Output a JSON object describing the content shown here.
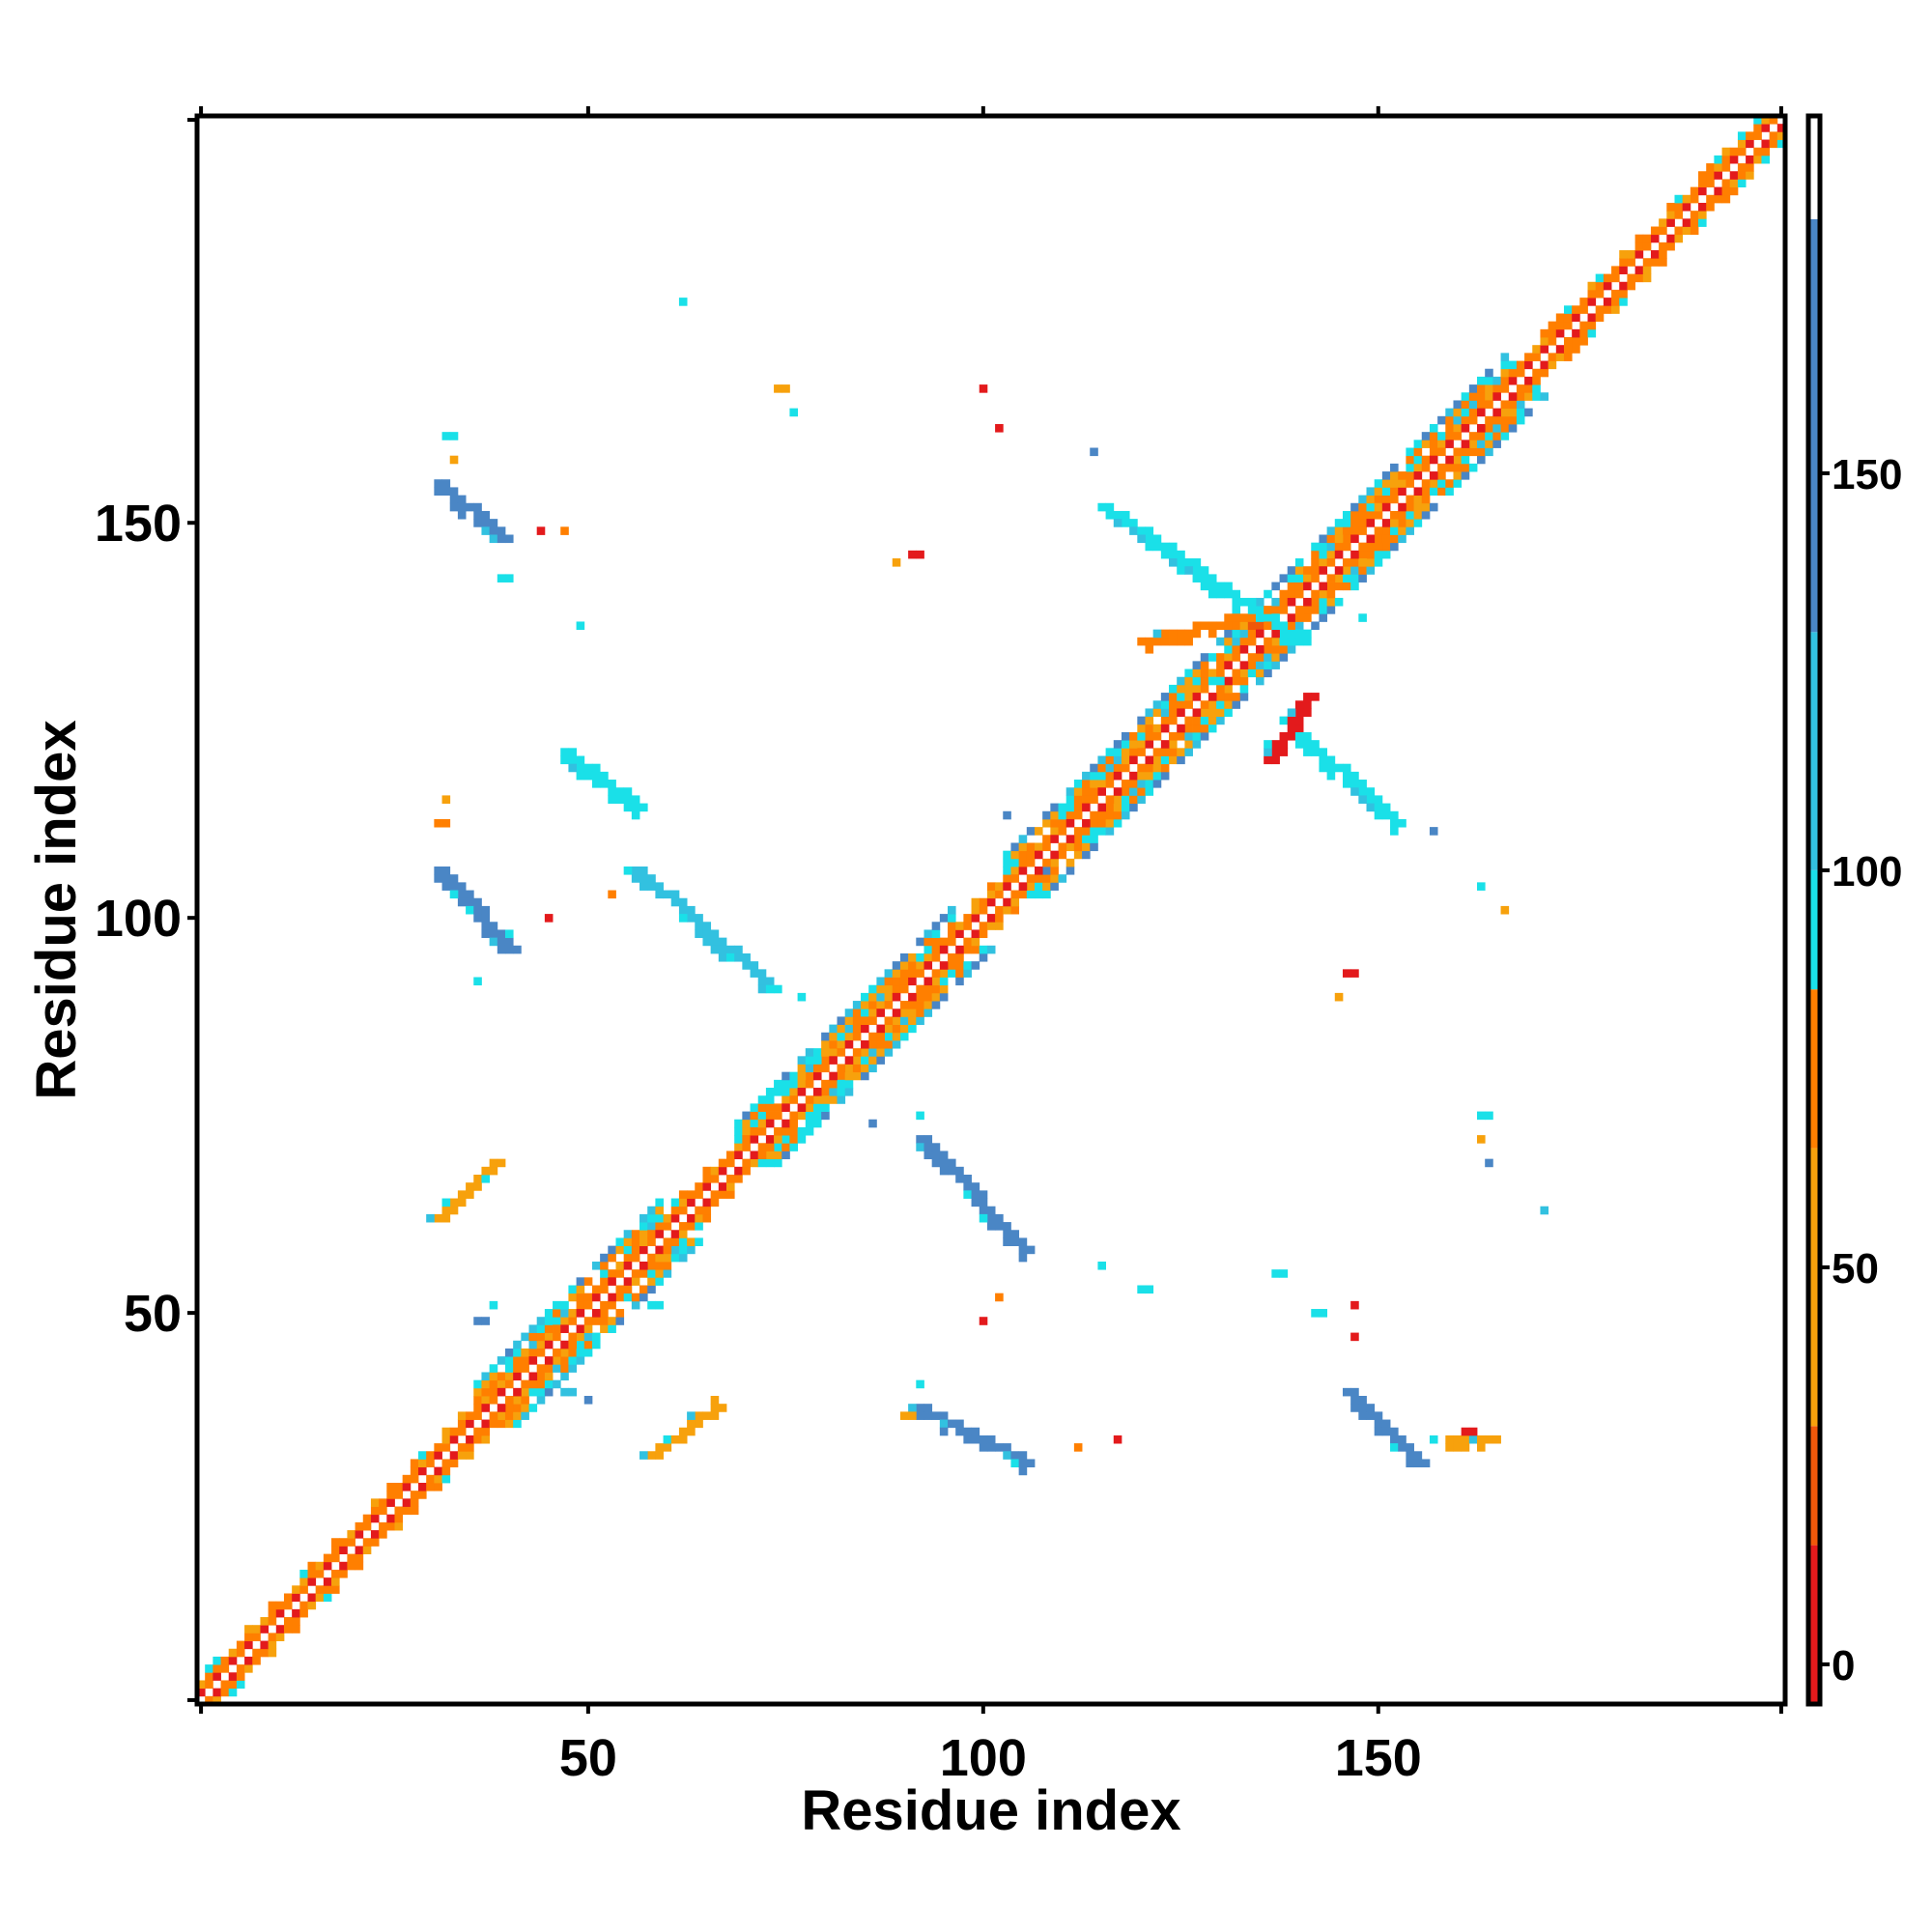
{
  "chart_data": {
    "type": "heatmap",
    "xlabel": "Residue index",
    "ylabel": "Residue index",
    "x_range": [
      1,
      201
    ],
    "y_range": [
      1,
      201
    ],
    "x_ticks": [
      50,
      100,
      150
    ],
    "y_ticks": [
      50,
      100,
      150
    ],
    "colorbar": {
      "range": [
        -5,
        195
      ],
      "ticks": [
        0,
        50,
        100,
        150
      ],
      "segments": [
        {
          "from": -5,
          "to": 15,
          "color": "#e31a1c"
        },
        {
          "from": 15,
          "to": 30,
          "color": "#f0580a"
        },
        {
          "from": 30,
          "to": 65,
          "color": "#f7a10c"
        },
        {
          "from": 65,
          "to": 85,
          "color": "#ff7f00"
        },
        {
          "from": 85,
          "to": 100,
          "color": "#1ae0e8"
        },
        {
          "from": 100,
          "to": 130,
          "color": "#32c1e0"
        },
        {
          "from": 130,
          "to": 182,
          "color": "#4a86c5"
        },
        {
          "from": 182,
          "to": 195,
          "color": "#ffffff"
        }
      ]
    },
    "colors": {
      "red": "#e31a1c",
      "orange": "#ff7f00",
      "light_orange": "#f7a10c",
      "cyan": "#1ae0e8",
      "sky": "#32c1e0",
      "steel_blue": "#4a86c5"
    },
    "features": [
      {
        "kind": "diagonal",
        "start": 1,
        "end": 201
      },
      {
        "kind": "helix_block",
        "start": 36,
        "end": 59
      },
      {
        "kind": "helix_block",
        "start": 69,
        "end": 96
      },
      {
        "kind": "helix_block",
        "start": 103,
        "end": 126
      },
      {
        "kind": "helix_block",
        "start": 123,
        "end": 152
      },
      {
        "kind": "helix_block",
        "start": 154,
        "end": 166
      },
      {
        "kind": "band",
        "x1": 31,
        "y1": 106,
        "x2": 40,
        "y2": 96,
        "color": "#4a86c5"
      },
      {
        "kind": "band",
        "x1": 56,
        "y1": 106,
        "x2": 72,
        "y2": 92,
        "color": "#32c1e0"
      },
      {
        "kind": "band",
        "x1": 31,
        "y1": 155,
        "x2": 39,
        "y2": 148,
        "color": "#4a86c5"
      },
      {
        "kind": "band",
        "x1": 92,
        "y1": 38,
        "x2": 105,
        "y2": 31,
        "color": "#4a86c5"
      },
      {
        "kind": "band",
        "x1": 92,
        "y1": 72,
        "x2": 105,
        "y2": 58,
        "color": "#4a86c5"
      },
      {
        "kind": "band",
        "x1": 146,
        "y1": 40,
        "x2": 155,
        "y2": 31,
        "color": "#4a86c5"
      },
      {
        "kind": "band",
        "x1": 115,
        "y1": 152,
        "x2": 140,
        "y2": 135,
        "color": "#1ae0e8"
      },
      {
        "kind": "band",
        "x1": 138,
        "y1": 125,
        "x2": 152,
        "y2": 112,
        "color": "#1ae0e8"
      },
      {
        "kind": "band",
        "x1": 120,
        "y1": 135,
        "x2": 133,
        "y2": 138,
        "color": "#ff7f00"
      },
      {
        "kind": "band",
        "x1": 136,
        "y1": 120,
        "x2": 141,
        "y2": 128,
        "color": "#e31a1c"
      },
      {
        "kind": "band",
        "x1": 31,
        "y1": 62,
        "x2": 38,
        "y2": 69,
        "color": "#f7a10c"
      },
      {
        "kind": "band",
        "x1": 58,
        "y1": 32,
        "x2": 66,
        "y2": 38,
        "color": "#f7a10c"
      },
      {
        "kind": "band",
        "x1": 47,
        "y1": 121,
        "x2": 56,
        "y2": 114,
        "color": "#1ae0e8"
      },
      {
        "kind": "band",
        "x1": 159,
        "y1": 34,
        "x2": 164,
        "y2": 34,
        "color": "#f7a10c"
      },
      {
        "kind": "spot",
        "x": 31,
        "y": 112,
        "color": "#ff7f00"
      },
      {
        "kind": "spot",
        "x": 32,
        "y": 115,
        "color": "#f7a10c"
      },
      {
        "kind": "spot",
        "x": 32,
        "y": 161,
        "color": "#1ae0e8"
      },
      {
        "kind": "spot",
        "x": 33,
        "y": 158,
        "color": "#f7a10c"
      },
      {
        "kind": "spot",
        "x": 44,
        "y": 149,
        "color": "#e31a1c"
      },
      {
        "kind": "spot",
        "x": 47,
        "y": 149,
        "color": "#ff7f00"
      },
      {
        "kind": "spot",
        "x": 91,
        "y": 146,
        "color": "#e31a1c"
      },
      {
        "kind": "spot",
        "x": 89,
        "y": 145,
        "color": "#f7a10c"
      },
      {
        "kind": "spot",
        "x": 62,
        "y": 178,
        "color": "#1ae0e8"
      },
      {
        "kind": "spot",
        "x": 76,
        "y": 164,
        "color": "#1ae0e8"
      },
      {
        "kind": "spot",
        "x": 74,
        "y": 167,
        "color": "#f7a10c"
      },
      {
        "kind": "spot",
        "x": 100,
        "y": 167,
        "color": "#e31a1c"
      },
      {
        "kind": "spot",
        "x": 102,
        "y": 162,
        "color": "#e31a1c"
      },
      {
        "kind": "spot",
        "x": 114,
        "y": 159,
        "color": "#4a86c5"
      },
      {
        "kind": "spot",
        "x": 40,
        "y": 98,
        "color": "#1ae0e8"
      },
      {
        "kind": "spot",
        "x": 36,
        "y": 92,
        "color": "#1ae0e8"
      },
      {
        "kind": "spot",
        "x": 45,
        "y": 100,
        "color": "#e31a1c"
      },
      {
        "kind": "spot",
        "x": 53,
        "y": 103,
        "color": "#ff7f00"
      },
      {
        "kind": "spot",
        "x": 77,
        "y": 90,
        "color": "#1ae0e8"
      },
      {
        "kind": "spot",
        "x": 73,
        "y": 91,
        "color": "#1ae0e8"
      },
      {
        "kind": "spot",
        "x": 92,
        "y": 75,
        "color": "#1ae0e8"
      },
      {
        "kind": "spot",
        "x": 86,
        "y": 74,
        "color": "#4a86c5"
      },
      {
        "kind": "spot",
        "x": 112,
        "y": 33,
        "color": "#ff7f00"
      },
      {
        "kind": "spot",
        "x": 117,
        "y": 34,
        "color": "#e31a1c"
      },
      {
        "kind": "spot",
        "x": 115,
        "y": 56,
        "color": "#1ae0e8"
      },
      {
        "kind": "spot",
        "x": 120,
        "y": 53,
        "color": "#1ae0e8"
      },
      {
        "kind": "spot",
        "x": 102,
        "y": 52,
        "color": "#ff7f00"
      },
      {
        "kind": "spot",
        "x": 100,
        "y": 49,
        "color": "#e31a1c"
      },
      {
        "kind": "spot",
        "x": 142,
        "y": 50,
        "color": "#1ae0e8"
      },
      {
        "kind": "spot",
        "x": 137,
        "y": 55,
        "color": "#1ae0e8"
      },
      {
        "kind": "spot",
        "x": 147,
        "y": 51,
        "color": "#e31a1c"
      },
      {
        "kind": "spot",
        "x": 147,
        "y": 47,
        "color": "#e31a1c"
      },
      {
        "kind": "spot",
        "x": 146,
        "y": 93,
        "color": "#e31a1c"
      },
      {
        "kind": "spot",
        "x": 145,
        "y": 90,
        "color": "#f7a10c"
      },
      {
        "kind": "spot",
        "x": 163,
        "y": 75,
        "color": "#1ae0e8"
      },
      {
        "kind": "spot",
        "x": 163,
        "y": 72,
        "color": "#f7a10c"
      },
      {
        "kind": "spot",
        "x": 164,
        "y": 69,
        "color": "#4a86c5"
      },
      {
        "kind": "spot",
        "x": 171,
        "y": 63,
        "color": "#32c1e0"
      },
      {
        "kind": "spot",
        "x": 163,
        "y": 104,
        "color": "#1ae0e8"
      },
      {
        "kind": "spot",
        "x": 166,
        "y": 101,
        "color": "#f7a10c"
      },
      {
        "kind": "spot",
        "x": 157,
        "y": 111,
        "color": "#4a86c5"
      },
      {
        "kind": "spot",
        "x": 108,
        "y": 106,
        "color": "#4a86c5"
      },
      {
        "kind": "spot",
        "x": 103,
        "y": 113,
        "color": "#4a86c5"
      },
      {
        "kind": "spot",
        "x": 148,
        "y": 138,
        "color": "#1ae0e8"
      },
      {
        "kind": "spot",
        "x": 143,
        "y": 146,
        "color": "#1ae0e8"
      },
      {
        "kind": "spot",
        "x": 39,
        "y": 143,
        "color": "#1ae0e8"
      },
      {
        "kind": "spot",
        "x": 49,
        "y": 137,
        "color": "#1ae0e8"
      },
      {
        "kind": "spot",
        "x": 37,
        "y": 67,
        "color": "#1ae0e8"
      },
      {
        "kind": "spot",
        "x": 66,
        "y": 39,
        "color": "#f7a10c"
      },
      {
        "kind": "spot",
        "x": 38,
        "y": 51,
        "color": "#1ae0e8"
      },
      {
        "kind": "spot",
        "x": 36,
        "y": 49,
        "color": "#4a86c5"
      },
      {
        "kind": "spot",
        "x": 47,
        "y": 40,
        "color": "#32c1e0"
      },
      {
        "kind": "spot",
        "x": 50,
        "y": 39,
        "color": "#4a86c5"
      },
      {
        "kind": "spot",
        "x": 58,
        "y": 51,
        "color": "#1ae0e8"
      },
      {
        "kind": "spot",
        "x": 90,
        "y": 37,
        "color": "#f7a10c"
      },
      {
        "kind": "spot",
        "x": 92,
        "y": 41,
        "color": "#1ae0e8"
      },
      {
        "kind": "spot",
        "x": 157,
        "y": 34,
        "color": "#1ae0e8"
      },
      {
        "kind": "spot",
        "x": 161,
        "y": 35,
        "color": "#e31a1c"
      },
      {
        "kind": "spot",
        "x": 134,
        "y": 137,
        "color": "#f0580a"
      },
      {
        "kind": "spot",
        "x": 129,
        "y": 130,
        "color": "#1ae0e8"
      }
    ]
  }
}
